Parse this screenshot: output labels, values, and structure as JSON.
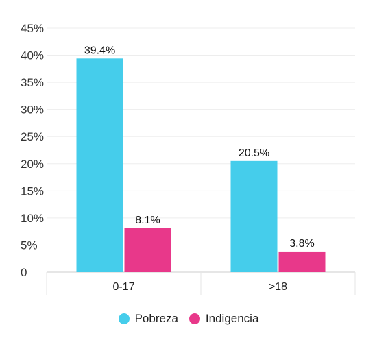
{
  "chart_data": {
    "type": "bar",
    "categories": [
      "0-17",
      ">18"
    ],
    "series": [
      {
        "name": "Pobreza",
        "values": [
          39.4,
          20.5
        ],
        "labels": [
          "39.4%",
          "20.5%"
        ],
        "color": "#45CDEB"
      },
      {
        "name": "Indigencia",
        "values": [
          8.1,
          3.8
        ],
        "labels": [
          "8.1%",
          "3.8%"
        ],
        "color": "#E8388A"
      }
    ],
    "ylim": [
      0,
      45
    ],
    "yticks": [
      {
        "value": 0,
        "label": "0"
      },
      {
        "value": 5,
        "label": "5%"
      },
      {
        "value": 10,
        "label": "10%"
      },
      {
        "value": 15,
        "label": "15%"
      },
      {
        "value": 20,
        "label": "20%"
      },
      {
        "value": 25,
        "label": "25%"
      },
      {
        "value": 30,
        "label": "30%"
      },
      {
        "value": 35,
        "label": "35%"
      },
      {
        "value": 40,
        "label": "40%"
      },
      {
        "value": 45,
        "label": "45%"
      }
    ],
    "grid": true,
    "legend_position": "bottom",
    "title": "",
    "xlabel": "",
    "ylabel": ""
  }
}
